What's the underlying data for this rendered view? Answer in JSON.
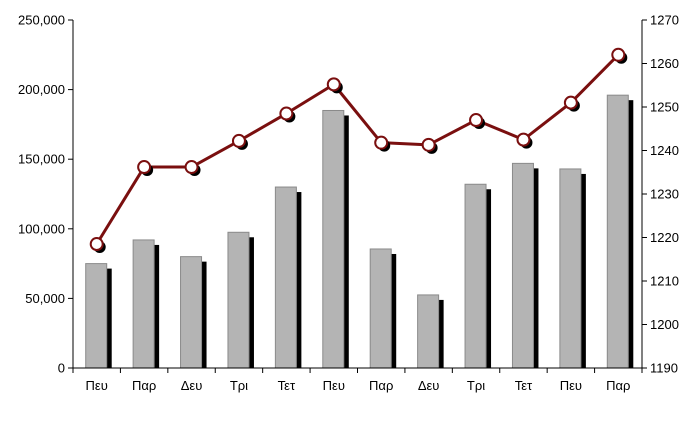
{
  "chart_data": {
    "type": "bar+line",
    "title": "",
    "categories": [
      "Πευ",
      "Παρ",
      "Δευ",
      "Τρι",
      "Τετ",
      "Πευ",
      "Παρ",
      "Δευ",
      "Τρι",
      "Τετ",
      "Πευ",
      "Παρ"
    ],
    "series": [
      {
        "type": "bar",
        "axis": "left",
        "values": [
          75000,
          92000,
          80000,
          97500,
          130000,
          185000,
          85500,
          52500,
          132000,
          147000,
          143000,
          196000
        ]
      },
      {
        "type": "line",
        "axis": "right",
        "values": [
          1218.5,
          1236.2,
          1236.2,
          1242.2,
          1248.5,
          1255.2,
          1241.8,
          1241.3,
          1247.0,
          1242.5,
          1251.0,
          1262.0
        ]
      }
    ],
    "left_axis": {
      "min": 0,
      "max": 250000,
      "step": 50000,
      "tick_labels": [
        "0",
        "50,000",
        "100,000",
        "150,000",
        "200,000",
        "250,000"
      ]
    },
    "right_axis": {
      "min": 1190,
      "max": 1270,
      "step": 10,
      "tick_labels": [
        "1190",
        "1200",
        "1210",
        "1220",
        "1230",
        "1240",
        "1250",
        "1260",
        "1270"
      ]
    },
    "grid": false,
    "legend": "none",
    "colors": {
      "bar_fill": "#b4b4b4",
      "bar_stroke": "#8a8a8a",
      "bar_shadow": "#000000",
      "line": "#7a0f0f",
      "marker_fill": "#ffffff",
      "marker_shadow": "#000000",
      "axis": "#000000"
    }
  }
}
